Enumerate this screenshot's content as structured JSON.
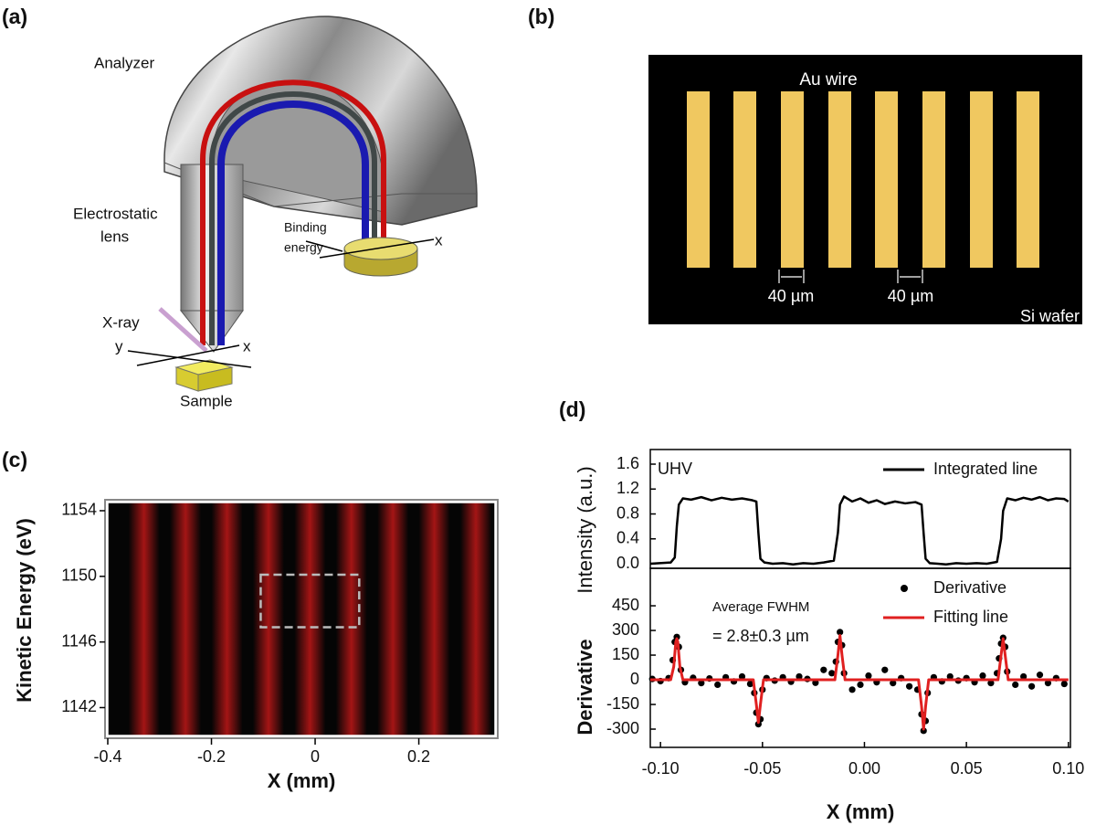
{
  "panel_labels": [
    "(a)",
    "(b)",
    "(c)",
    "(d)"
  ],
  "panel_a": {
    "analyzer": "Analyzer",
    "lens": [
      "Electrostatic",
      "lens"
    ],
    "binding": [
      "Binding",
      "energy"
    ],
    "detector_axis": "x",
    "xray": "X-ray",
    "sample_axes": [
      "y",
      "x"
    ],
    "sample": "Sample"
  },
  "panel_b": {
    "wire": "Au wire",
    "gaps": [
      "40 µm",
      "40 µm"
    ],
    "substrate": "Si wafer"
  },
  "chart_data": [
    {
      "type": "heatmap",
      "xlabel": "X (mm)",
      "ylabel": "Kinetic Energy (eV)",
      "xlim": [
        -0.4,
        0.347
      ],
      "xticks": [
        -0.4,
        -0.2,
        0,
        0.2
      ],
      "ylim": [
        1140.3,
        1154.5
      ],
      "yticks": [
        1142,
        1146,
        1150,
        1154
      ],
      "color": "#c01818",
      "bright_bands": [
        -0.33,
        -0.25,
        -0.17,
        -0.09,
        -0.01,
        0.07,
        0.15,
        0.23,
        0.31
      ],
      "roi": {
        "x": [
          -0.105,
          0.085
        ],
        "y": [
          1146.9,
          1150.1
        ]
      }
    },
    {
      "type": "line",
      "ylabel": "Intensity (a.u.)",
      "xlim": [
        -0.105,
        0.101
      ],
      "ylim": [
        -0.073,
        1.835
      ],
      "yticks": [
        {
          "value": 0,
          "label": "0.0"
        },
        0.4,
        0.8,
        1.2,
        1.6
      ],
      "annotations": [
        "UHV"
      ],
      "legend": "upper right",
      "series": [
        {
          "name": "Integrated line",
          "color": "#000000",
          "mode": "lines",
          "x": [
            -0.105,
            -0.095,
            -0.093,
            -0.092,
            -0.091,
            -0.089,
            -0.085,
            -0.08,
            -0.075,
            -0.07,
            -0.065,
            -0.06,
            -0.055,
            -0.053,
            -0.052,
            -0.051,
            -0.049,
            -0.045,
            -0.04,
            -0.035,
            -0.03,
            -0.025,
            -0.02,
            -0.015,
            -0.013,
            -0.012,
            -0.01,
            -0.006,
            -0.002,
            0.002,
            0.006,
            0.01,
            0.015,
            0.02,
            0.025,
            0.028,
            0.029,
            0.03,
            0.032,
            0.036,
            0.04,
            0.045,
            0.05,
            0.055,
            0.06,
            0.065,
            0.067,
            0.068,
            0.07,
            0.074,
            0.078,
            0.082,
            0.086,
            0.09,
            0.094,
            0.098,
            0.1
          ],
          "values": [
            0.0,
            0.02,
            0.1,
            0.6,
            0.95,
            1.05,
            1.03,
            1.07,
            1.02,
            1.06,
            1.03,
            1.05,
            1.02,
            1.0,
            0.5,
            0.08,
            0.02,
            0.0,
            0.01,
            -0.01,
            0.01,
            0.0,
            0.02,
            0.05,
            0.5,
            0.95,
            1.08,
            1.0,
            1.05,
            0.98,
            1.02,
            0.96,
            1.0,
            0.97,
            0.99,
            0.95,
            0.5,
            0.08,
            0.01,
            0.0,
            -0.01,
            0.01,
            0.0,
            0.01,
            0.0,
            0.03,
            0.4,
            0.85,
            1.05,
            1.02,
            1.06,
            1.03,
            1.07,
            1.02,
            1.05,
            1.04,
            1.0
          ]
        }
      ]
    },
    {
      "type": "line",
      "xlabel": "X (mm)",
      "ylabel": "Derivative",
      "xlim": [
        -0.105,
        0.101
      ],
      "xticks": [
        {
          "value": -0.1,
          "label": "-0.10"
        },
        {
          "value": -0.05,
          "label": "-0.05"
        },
        {
          "value": 0,
          "label": "0.00"
        },
        0.05,
        {
          "value": 0.1,
          "label": "0.10"
        }
      ],
      "ylim": [
        -411,
        678
      ],
      "yticks": [
        -300,
        -150,
        0,
        150,
        300,
        450
      ],
      "annotations": [
        "Average FWHM",
        "= 2.8±0.3 µm"
      ],
      "legend": "upper right",
      "series": [
        {
          "name": "Derivative",
          "color": "#000000",
          "mode": "markers",
          "x": [
            -0.104,
            -0.1,
            -0.096,
            -0.094,
            -0.093,
            -0.092,
            -0.091,
            -0.09,
            -0.088,
            -0.084,
            -0.08,
            -0.076,
            -0.072,
            -0.068,
            -0.064,
            -0.06,
            -0.056,
            -0.054,
            -0.053,
            -0.052,
            -0.051,
            -0.05,
            -0.048,
            -0.044,
            -0.04,
            -0.036,
            -0.032,
            -0.028,
            -0.024,
            -0.02,
            -0.016,
            -0.014,
            -0.013,
            -0.012,
            -0.011,
            -0.01,
            -0.006,
            -0.002,
            0.002,
            0.006,
            0.01,
            0.014,
            0.018,
            0.022,
            0.026,
            0.028,
            0.029,
            0.03,
            0.031,
            0.034,
            0.038,
            0.042,
            0.046,
            0.05,
            0.054,
            0.058,
            0.062,
            0.065,
            0.066,
            0.067,
            0.068,
            0.069,
            0.07,
            0.074,
            0.078,
            0.082,
            0.086,
            0.09,
            0.094,
            0.098
          ],
          "values": [
            5,
            -8,
            10,
            120,
            230,
            260,
            200,
            60,
            -15,
            12,
            -20,
            8,
            -30,
            15,
            -10,
            20,
            -25,
            -80,
            -200,
            -270,
            -240,
            -60,
            10,
            -5,
            15,
            -12,
            20,
            5,
            -18,
            60,
            40,
            110,
            230,
            290,
            210,
            40,
            -60,
            -30,
            25,
            -15,
            60,
            -20,
            10,
            -40,
            -60,
            -210,
            -310,
            -250,
            -80,
            15,
            -10,
            20,
            -5,
            10,
            -15,
            25,
            -20,
            40,
            130,
            220,
            255,
            200,
            50,
            -30,
            20,
            -40,
            30,
            -20,
            10,
            -25
          ]
        },
        {
          "name": "Fitting line",
          "color": "#e02020",
          "mode": "lines",
          "x": [
            -0.105,
            -0.095,
            -0.0935,
            -0.0925,
            -0.092,
            -0.0915,
            -0.0905,
            -0.089,
            -0.0545,
            -0.053,
            -0.052,
            -0.051,
            -0.0495,
            -0.0145,
            -0.013,
            -0.012,
            -0.011,
            -0.0095,
            0.0265,
            0.028,
            0.029,
            0.03,
            0.0315,
            0.0655,
            0.067,
            0.068,
            0.069,
            0.0705,
            0.1
          ],
          "values": [
            0,
            0,
            80,
            230,
            250,
            230,
            80,
            0,
            0,
            -150,
            -260,
            -150,
            0,
            0,
            150,
            270,
            150,
            0,
            0,
            -160,
            -300,
            -160,
            0,
            0,
            150,
            250,
            150,
            0,
            0
          ]
        }
      ]
    }
  ]
}
